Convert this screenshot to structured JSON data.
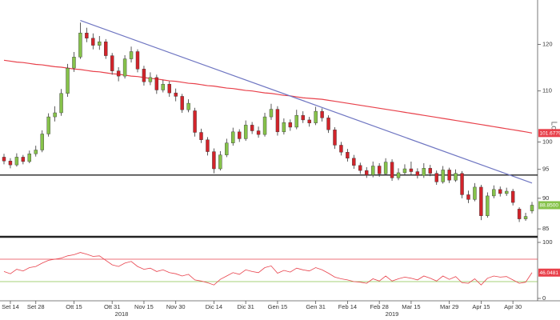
{
  "chart_data": {
    "type": "candlestick",
    "log_scale": true,
    "ylim": [
      84,
      130
    ],
    "yticks": [
      85,
      90,
      95,
      100,
      110,
      120
    ],
    "scale_label": "Log",
    "up_color": "#86c24a",
    "down_color": "#d2232a",
    "categories": [
      null,
      "Set 14",
      null,
      null,
      null,
      "Set 28",
      null,
      null,
      null,
      null,
      null,
      "Ott 15",
      null,
      null,
      null,
      null,
      null,
      "Ott 31",
      null,
      null,
      null,
      null,
      "Nov 15",
      null,
      null,
      null,
      null,
      "Nov 30",
      null,
      null,
      null,
      null,
      null,
      "Dic 14",
      null,
      null,
      null,
      null,
      "Dic 31",
      null,
      null,
      null,
      null,
      "Gen 15",
      null,
      null,
      null,
      null,
      null,
      "Gen 31",
      null,
      null,
      null,
      null,
      "Feb 14",
      null,
      null,
      null,
      null,
      "Feb 28",
      null,
      null,
      null,
      null,
      "Mar 15",
      null,
      null,
      null,
      null,
      null,
      "Mar 29",
      null,
      null,
      null,
      null,
      "Apr 15",
      null,
      null,
      null,
      null,
      "Apr 30",
      null,
      null,
      null
    ],
    "years": [
      "2018",
      "2019"
    ],
    "open": [
      97.2,
      96.5,
      95.8,
      97.2,
      96.4,
      97.8,
      98.5,
      101.5,
      104.8,
      105.6,
      109.5,
      114.8,
      117.2,
      122.6,
      121.4,
      119.8,
      120.6,
      117.5,
      114.2,
      113.1,
      116.8,
      118.4,
      114.6,
      111.9,
      112.8,
      110.2,
      111.4,
      109.6,
      108.9,
      106.2,
      106.0,
      101.8,
      100.4,
      98.2,
      95.1,
      97.6,
      99.8,
      101.9,
      100.6,
      103.2,
      102.1,
      101.4,
      104.8,
      106.3,
      101.9,
      103.7,
      102.8,
      105.1,
      104.2,
      103.6,
      105.9,
      104.6,
      102.3,
      99.4,
      98.1,
      97.0,
      95.7,
      94.8,
      94.0,
      95.6,
      94.2,
      96.3,
      93.5,
      94.4,
      95.1,
      94.6,
      93.9,
      95.2,
      94.3,
      92.8,
      94.9,
      93.1,
      94.3,
      90.6,
      89.8,
      91.9,
      87.1,
      90.4,
      91.5,
      90.8,
      91.2,
      88.2,
      86.6,
      87.9
    ],
    "high": [
      97.8,
      97.0,
      97.9,
      97.6,
      98.4,
      99.3,
      102.2,
      105.5,
      106.9,
      110.4,
      115.7,
      118.3,
      125.0,
      123.8,
      122.5,
      121.9,
      121.2,
      118.1,
      115.0,
      117.6,
      119.5,
      118.9,
      115.3,
      113.9,
      113.4,
      112.3,
      112.0,
      110.5,
      109.4,
      108.3,
      106.6,
      102.5,
      100.9,
      98.8,
      98.3,
      100.6,
      102.7,
      102.4,
      104.1,
      103.8,
      102.9,
      105.6,
      107.4,
      106.9,
      104.5,
      104.3,
      106.2,
      105.9,
      104.8,
      106.8,
      106.5,
      105.1,
      102.8,
      100.0,
      98.7,
      97.6,
      96.2,
      95.4,
      96.4,
      96.1,
      97.0,
      96.8,
      95.2,
      95.9,
      96.4,
      95.2,
      96.1,
      95.8,
      94.8,
      95.6,
      95.3,
      95.0,
      94.7,
      91.3,
      92.6,
      92.3,
      91.0,
      92.2,
      92.0,
      91.8,
      91.6,
      88.5,
      87.6,
      89.4
    ],
    "low": [
      95.9,
      95.2,
      95.5,
      95.9,
      96.1,
      97.3,
      98.1,
      101.0,
      103.9,
      105.0,
      108.8,
      114.0,
      116.8,
      120.5,
      118.9,
      118.8,
      116.8,
      113.4,
      112.0,
      112.6,
      116.0,
      113.9,
      111.1,
      111.2,
      109.4,
      109.7,
      108.8,
      107.9,
      105.6,
      105.7,
      101.0,
      99.8,
      97.5,
      94.3,
      94.8,
      97.2,
      99.3,
      100.0,
      100.2,
      101.5,
      100.8,
      101.0,
      104.2,
      101.2,
      101.4,
      102.1,
      102.4,
      103.6,
      102.9,
      103.2,
      103.9,
      101.7,
      98.7,
      97.5,
      96.4,
      95.1,
      94.2,
      93.5,
      93.6,
      93.7,
      93.9,
      93.0,
      93.1,
      94.0,
      94.1,
      93.4,
      93.5,
      93.8,
      92.3,
      92.5,
      92.6,
      92.8,
      90.0,
      89.2,
      89.5,
      86.4,
      86.8,
      90.0,
      90.3,
      90.4,
      88.8,
      86.1,
      86.3,
      87.5
    ],
    "close": [
      96.5,
      95.8,
      97.2,
      96.4,
      97.8,
      98.5,
      101.5,
      104.8,
      105.6,
      109.5,
      114.8,
      117.2,
      122.6,
      121.4,
      119.8,
      120.6,
      117.5,
      114.2,
      113.1,
      116.8,
      118.4,
      114.6,
      111.9,
      112.8,
      110.2,
      111.4,
      109.6,
      108.9,
      106.2,
      107.5,
      101.8,
      100.4,
      98.2,
      95.1,
      97.6,
      99.8,
      101.9,
      100.6,
      103.2,
      102.1,
      101.4,
      104.8,
      106.3,
      101.9,
      103.7,
      102.8,
      105.1,
      104.2,
      103.6,
      105.9,
      104.6,
      102.3,
      99.4,
      98.1,
      97.0,
      95.7,
      94.8,
      94.0,
      95.6,
      94.2,
      96.3,
      93.5,
      94.4,
      95.1,
      94.6,
      93.9,
      95.2,
      94.3,
      92.8,
      94.9,
      93.1,
      94.3,
      90.6,
      89.8,
      91.9,
      87.1,
      90.4,
      91.5,
      90.8,
      91.2,
      89.3,
      86.6,
      87.0,
      88.85
    ],
    "last_price": {
      "value": 88.85,
      "label": "88.8500",
      "color": "#86c24a"
    },
    "moving_average": {
      "color": "#e8414b",
      "values": [
        116.5,
        116.3,
        116.1,
        116.0,
        115.8,
        115.6,
        115.5,
        115.3,
        115.1,
        115.0,
        114.8,
        114.6,
        114.5,
        114.3,
        114.1,
        114.0,
        113.8,
        113.6,
        113.5,
        113.3,
        113.1,
        113.0,
        112.8,
        112.6,
        112.5,
        112.3,
        112.1,
        112.0,
        111.8,
        111.6,
        111.5,
        111.3,
        111.1,
        111.0,
        110.8,
        110.6,
        110.5,
        110.3,
        110.1,
        110.0,
        109.8,
        109.6,
        109.5,
        109.3,
        109.1,
        109.0,
        108.8,
        108.6,
        108.5,
        108.4,
        108.3,
        108.1,
        107.9,
        107.7,
        107.5,
        107.3,
        107.1,
        106.9,
        106.7,
        106.5,
        106.3,
        106.1,
        105.9,
        105.7,
        105.5,
        105.3,
        105.1,
        104.9,
        104.7,
        104.5,
        104.3,
        104.1,
        103.9,
        103.7,
        103.5,
        103.3,
        103.1,
        102.9,
        102.7,
        102.5,
        102.3,
        102.1,
        101.9,
        101.6779
      ]
    },
    "trendline": {
      "color": "#6f76c2",
      "x": [
        12,
        83
      ],
      "values": [
        125.5,
        92.6
      ]
    },
    "support": {
      "color": "#222222",
      "value": 94
    },
    "rsi": {
      "color": "#e8414b",
      "ylim": [
        0,
        100
      ],
      "yticks": [
        0,
        100
      ],
      "levels": [
        {
          "value": 70,
          "color": "#e8414b"
        },
        {
          "value": 30,
          "color": "#86c24a"
        }
      ],
      "values": [
        48,
        44,
        52,
        49,
        55,
        57,
        63,
        68,
        70,
        72,
        76,
        78,
        82,
        79,
        75,
        76,
        68,
        60,
        57,
        63,
        66,
        57,
        52,
        54,
        48,
        51,
        46,
        44,
        40,
        43,
        33,
        31,
        28,
        24,
        34,
        40,
        46,
        43,
        51,
        48,
        46,
        55,
        58,
        45,
        50,
        47,
        54,
        51,
        49,
        55,
        51,
        45,
        38,
        35,
        33,
        30,
        29,
        27,
        35,
        31,
        40,
        31,
        35,
        38,
        36,
        33,
        40,
        36,
        31,
        40,
        34,
        39,
        28,
        27,
        35,
        24,
        36,
        40,
        38,
        39,
        33,
        27,
        29,
        46.0481
      ]
    }
  }
}
